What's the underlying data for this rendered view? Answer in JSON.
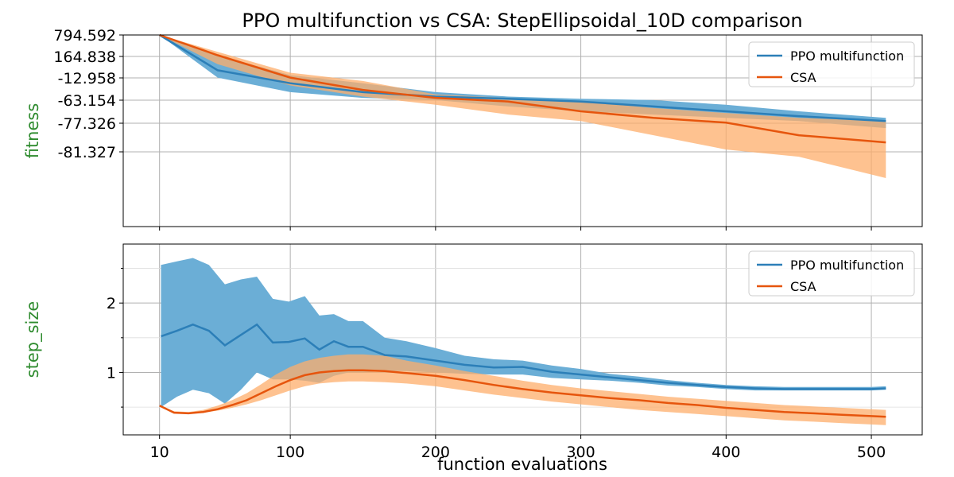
{
  "figure": {
    "title": "PPO multifunction vs CSA: StepEllipsoidal_10D comparison",
    "xlabel": "function evaluations"
  },
  "colors": {
    "ppo": "#2c7fb8",
    "ppo_band": "#6baed6",
    "csa": "#e6550d",
    "csa_band": "#fdae6b",
    "axis_label": "#2e8b2e",
    "grid": "#b0b0b0"
  },
  "chart_data": [
    {
      "type": "line",
      "ylabel": "fitness",
      "xlim": [
        -15,
        535
      ],
      "x_ticks": [
        10,
        100,
        200,
        300,
        400,
        500
      ],
      "y_ticks": [
        "794.592",
        "164.838",
        "-12.958",
        "-63.154",
        "-77.326",
        "-81.327"
      ],
      "y_scale": "categorical-tick",
      "legend": "top-right",
      "grid": true,
      "series": [
        {
          "name": "PPO multifunction",
          "x": [
            10,
            50,
            100,
            150,
            200,
            250,
            300,
            350,
            400,
            450,
            510
          ],
          "mean": [
            794.592,
            50,
            -25,
            -45,
            -55,
            -60,
            -64,
            -67,
            -70,
            -73,
            -76
          ],
          "low": [
            794.592,
            -10,
            -45,
            -58,
            -63,
            -67,
            -70,
            -72,
            -74,
            -76,
            -78
          ],
          "high": [
            794.592,
            200,
            10,
            -25,
            -45,
            -55,
            -60,
            -63,
            -66,
            -70,
            -74
          ]
        },
        {
          "name": "CSA",
          "x": [
            10,
            50,
            100,
            150,
            200,
            250,
            300,
            350,
            400,
            450,
            510
          ],
          "mean": [
            794.592,
            200,
            -10,
            -40,
            -58,
            -64,
            -70,
            -74,
            -77,
            -79,
            -80
          ],
          "low": [
            794.592,
            100,
            -30,
            -55,
            -66,
            -72,
            -76,
            -79,
            -81,
            -82,
            -85
          ],
          "high": [
            794.592,
            300,
            30,
            -20,
            -50,
            -58,
            -64,
            -68,
            -71,
            -74,
            -76
          ]
        }
      ]
    },
    {
      "type": "line",
      "ylabel": "step_size",
      "xlim": [
        -15,
        535
      ],
      "ylim": [
        0.1,
        2.85
      ],
      "x_ticks": [
        10,
        100,
        200,
        300,
        400,
        500
      ],
      "y_ticks": [
        1,
        2
      ],
      "legend": "top-right",
      "grid": true,
      "series": [
        {
          "name": "PPO multifunction",
          "x": [
            11,
            22,
            33,
            44,
            55,
            66,
            77,
            88,
            99,
            110,
            120,
            130,
            140,
            150,
            165,
            180,
            200,
            220,
            240,
            260,
            280,
            300,
            320,
            340,
            360,
            380,
            400,
            420,
            440,
            460,
            480,
            500,
            510
          ],
          "mean": [
            1.52,
            1.6,
            1.69,
            1.6,
            1.39,
            1.54,
            1.69,
            1.43,
            1.44,
            1.49,
            1.33,
            1.45,
            1.37,
            1.37,
            1.25,
            1.23,
            1.17,
            1.11,
            1.07,
            1.08,
            1.01,
            0.97,
            0.93,
            0.89,
            0.85,
            0.82,
            0.79,
            0.77,
            0.76,
            0.76,
            0.76,
            0.76,
            0.77
          ],
          "low": [
            0.5,
            0.65,
            0.75,
            0.7,
            0.55,
            0.75,
            1.0,
            0.9,
            0.9,
            0.88,
            0.85,
            0.95,
            1.0,
            1.0,
            1.02,
            1.02,
            1.0,
            0.98,
            0.97,
            0.97,
            0.92,
            0.9,
            0.88,
            0.85,
            0.81,
            0.79,
            0.76,
            0.74,
            0.74,
            0.74,
            0.74,
            0.74,
            0.75
          ],
          "high": [
            2.55,
            2.6,
            2.65,
            2.55,
            2.27,
            2.34,
            2.38,
            2.06,
            2.02,
            2.1,
            1.82,
            1.84,
            1.74,
            1.74,
            1.5,
            1.45,
            1.35,
            1.24,
            1.19,
            1.17,
            1.1,
            1.05,
            0.98,
            0.94,
            0.89,
            0.85,
            0.82,
            0.8,
            0.79,
            0.79,
            0.79,
            0.79,
            0.8
          ]
        },
        {
          "name": "CSA",
          "x": [
            10,
            20,
            30,
            40,
            50,
            60,
            70,
            80,
            90,
            100,
            110,
            120,
            130,
            140,
            150,
            165,
            180,
            200,
            220,
            240,
            260,
            280,
            300,
            320,
            340,
            360,
            380,
            400,
            420,
            440,
            460,
            480,
            500,
            510
          ],
          "mean": [
            0.52,
            0.42,
            0.41,
            0.43,
            0.47,
            0.53,
            0.6,
            0.7,
            0.8,
            0.89,
            0.96,
            1.0,
            1.02,
            1.03,
            1.03,
            1.02,
            0.99,
            0.95,
            0.89,
            0.82,
            0.76,
            0.71,
            0.67,
            0.63,
            0.6,
            0.56,
            0.53,
            0.49,
            0.46,
            0.43,
            0.41,
            0.39,
            0.37,
            0.36
          ],
          "low": [
            0.52,
            0.41,
            0.4,
            0.42,
            0.45,
            0.49,
            0.54,
            0.6,
            0.67,
            0.74,
            0.8,
            0.84,
            0.86,
            0.87,
            0.87,
            0.86,
            0.84,
            0.8,
            0.74,
            0.68,
            0.63,
            0.58,
            0.54,
            0.5,
            0.46,
            0.43,
            0.4,
            0.37,
            0.34,
            0.31,
            0.29,
            0.27,
            0.25,
            0.24
          ],
          "high": [
            0.52,
            0.44,
            0.43,
            0.46,
            0.52,
            0.6,
            0.7,
            0.83,
            0.97,
            1.08,
            1.16,
            1.21,
            1.24,
            1.26,
            1.26,
            1.24,
            1.17,
            1.1,
            1.02,
            0.95,
            0.88,
            0.82,
            0.77,
            0.73,
            0.69,
            0.65,
            0.62,
            0.59,
            0.56,
            0.53,
            0.51,
            0.49,
            0.47,
            0.46
          ]
        }
      ]
    }
  ]
}
